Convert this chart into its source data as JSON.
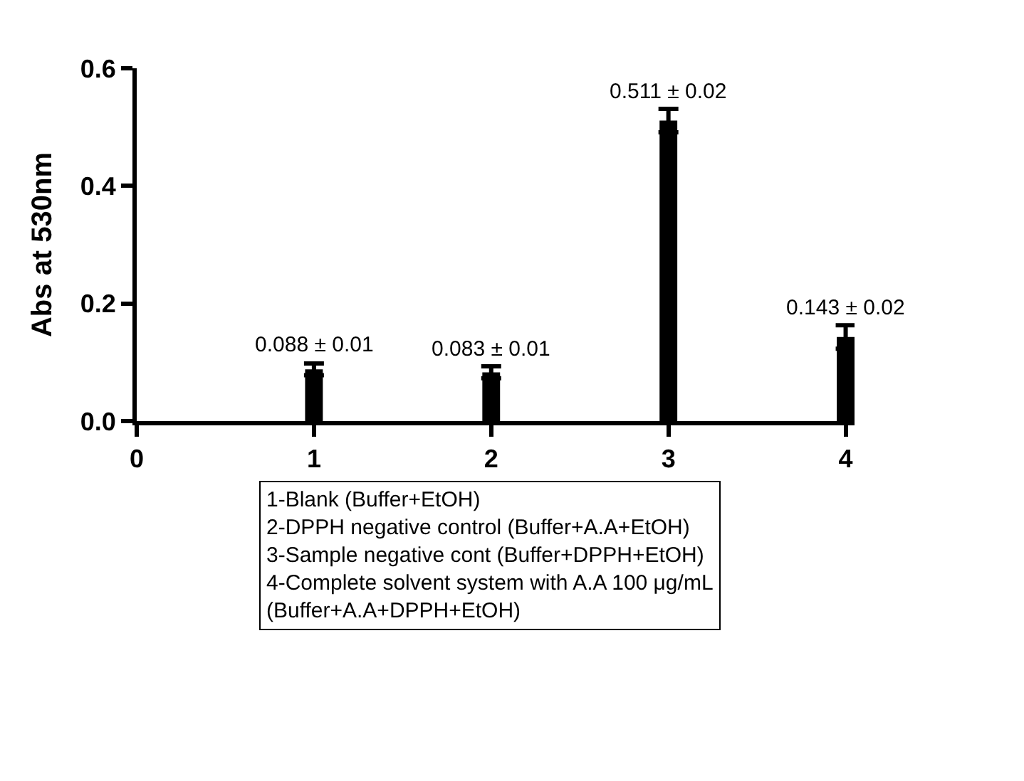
{
  "chart_data": {
    "type": "bar",
    "ylabel": "Abs at 530nm",
    "x": [
      1,
      2,
      3,
      4
    ],
    "values": [
      0.088,
      0.083,
      0.511,
      0.143
    ],
    "errors": [
      0.01,
      0.01,
      0.02,
      0.02
    ],
    "color": "#000000",
    "value_labels": [
      "0.088 ± 0.01",
      "0.083 ± 0.01",
      "0.511 ± 0.02",
      "0.143 ± 0.02"
    ],
    "xlim": [
      0,
      4.05
    ],
    "xticks": [
      0,
      1,
      2,
      3,
      4
    ],
    "ylim": [
      0,
      0.6
    ],
    "yticks": [
      {
        "value": 0,
        "label": "0.0"
      },
      {
        "value": 0.2,
        "label": "0.2"
      },
      {
        "value": 0.4,
        "label": "0.4"
      },
      {
        "value": 0.6,
        "label": "0.6"
      }
    ],
    "annotations": [
      "1-Blank (Buffer+EtOH)\n2-DPPH negative control (Buffer+A.A+EtOH)\n3-Sample negative cont (Buffer+DPPH+EtOH)\n4-Complete solvent system with A.A 100 μg/mL\n(Buffer+A.A+DPPH+EtOH)"
    ],
    "legend": false
  }
}
